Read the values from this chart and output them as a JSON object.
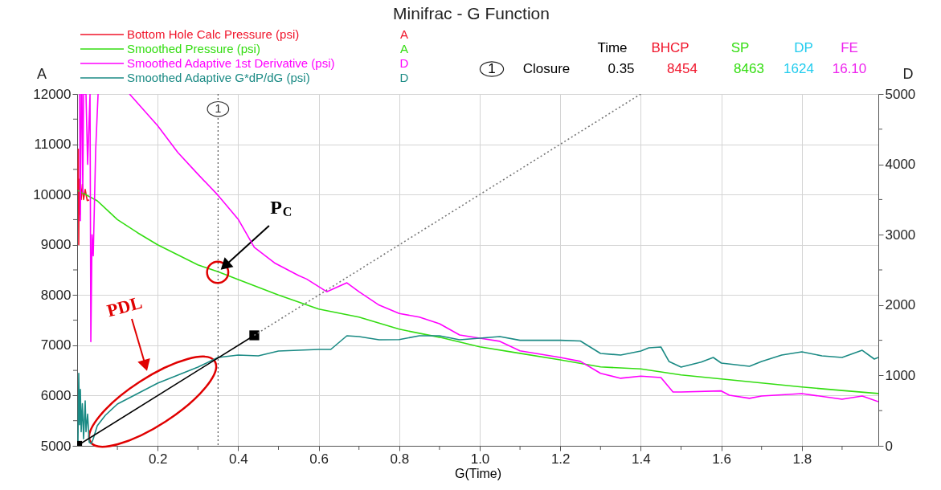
{
  "chart_data": {
    "type": "line",
    "title": "Minifrac - G Function",
    "xlabel": "G(Time)",
    "ylabel": "A",
    "y2label": "D",
    "xlim": [
      0,
      1.99
    ],
    "ylim": [
      5000,
      12000
    ],
    "y2lim": [
      0,
      5000
    ],
    "xticks": [
      0.2,
      0.4,
      0.6,
      0.8,
      {
        "value": 1.0,
        "label": "1.0"
      },
      1.2,
      1.4,
      1.6,
      1.8,
      {
        "value": 0.1,
        "label": null
      },
      {
        "value": 0.3,
        "label": null
      },
      {
        "value": 0.5,
        "label": null
      },
      {
        "value": 0.7,
        "label": null
      },
      {
        "value": 0.9,
        "label": null
      },
      {
        "value": 1.1,
        "label": null
      },
      {
        "value": 1.3,
        "label": null
      },
      {
        "value": 1.5,
        "label": null
      },
      {
        "value": 1.7,
        "label": null
      },
      {
        "value": 1.9,
        "label": null
      }
    ],
    "yticks": [
      5000,
      6000,
      7000,
      8000,
      9000,
      10000,
      11000,
      12000,
      {
        "value": 5500,
        "label": null
      },
      {
        "value": 6500,
        "label": null
      },
      {
        "value": 7500,
        "label": null
      },
      {
        "value": 8500,
        "label": null
      },
      {
        "value": 9500,
        "label": null
      },
      {
        "value": 10500,
        "label": null
      },
      {
        "value": 11500,
        "label": null
      }
    ],
    "y2ticks": [
      0,
      1000,
      2000,
      3000,
      4000,
      5000,
      {
        "value": 500,
        "label": null
      },
      {
        "value": 1500,
        "label": null
      },
      {
        "value": 2500,
        "label": null
      },
      {
        "value": 3500,
        "label": null
      },
      {
        "value": 4500,
        "label": null
      }
    ],
    "grid": true,
    "legend": "top left",
    "series": [
      {
        "name": "Bottom Hole Calc Pressure (psi)",
        "color": "#f0142a",
        "x": [
          0.002,
          0.003,
          0.004,
          0.005,
          0.006,
          0.008,
          0.01,
          0.013,
          0.016,
          0.02,
          0.025,
          0.03
        ],
        "values": [
          10100,
          10900,
          9000,
          10300,
          9600,
          10200,
          9900,
          10200,
          9900,
          10100,
          9880,
          9890
        ]
      },
      {
        "name": "Smoothed Pressure (psi)",
        "color": "#33dd11",
        "x": [
          0.002,
          0.05,
          0.1,
          0.15,
          0.2,
          0.25,
          0.3,
          0.35,
          0.4,
          0.5,
          0.6,
          0.7,
          0.8,
          0.9,
          1.0,
          1.1,
          1.2,
          1.3,
          1.4,
          1.5,
          1.6,
          1.7,
          1.8,
          1.9,
          1.99
        ],
        "values": [
          10080,
          9875,
          9500,
          9240,
          9000,
          8800,
          8600,
          8463,
          8310,
          8000,
          7720,
          7560,
          7320,
          7160,
          6970,
          6840,
          6710,
          6570,
          6530,
          6410,
          6330,
          6250,
          6170,
          6100,
          6040
        ]
      },
      {
        "name": "Smoothed Adaptive 1st Derivative (psi)",
        "color": "#ff00ff",
        "axis": "y2",
        "x": [
          0.006,
          0.008,
          0.01,
          0.012,
          0.014,
          0.016,
          0.022,
          0.026,
          0.032,
          0.034,
          0.037,
          0.04,
          0.046,
          0.052,
          0.09,
          0.13,
          0.2,
          0.25,
          0.3,
          0.35,
          0.4,
          0.44,
          0.49,
          0.55,
          0.57,
          0.62,
          0.67,
          0.7,
          0.75,
          0.8,
          0.85,
          0.9,
          0.95,
          1.0,
          1.05,
          1.1,
          1.2,
          1.25,
          1.3,
          1.35,
          1.4,
          1.45,
          1.48,
          1.5,
          1.6,
          1.62,
          1.67,
          1.7,
          1.8,
          1.9,
          1.95,
          1.99
        ],
        "values": [
          5000,
          3200,
          5000,
          5000,
          3600,
          5000,
          5000,
          4000,
          5000,
          1480,
          3000,
          2700,
          4200,
          5000,
          null,
          5000,
          4550,
          4170,
          3860,
          3560,
          3220,
          2820,
          2600,
          2420,
          2370,
          2190,
          2317,
          2190,
          2000,
          1880,
          1830,
          1735,
          1575,
          1530,
          1485,
          1350,
          1255,
          1200,
          1030,
          960,
          990,
          970,
          765,
          765,
          780,
          720,
          675,
          708,
          742,
          662,
          708,
          628
        ]
      },
      {
        "name": "Smoothed Adaptive G*dP/dG (psi)",
        "color": "#1a8a84",
        "axis": "y2",
        "x": [
          0.002,
          0.004,
          0.006,
          0.008,
          0.01,
          0.013,
          0.016,
          0.02,
          0.022,
          0.026,
          0.03,
          0.035,
          0.04,
          0.05,
          0.07,
          0.1,
          0.15,
          0.2,
          0.25,
          0.3,
          0.35,
          0.4,
          0.45,
          0.5,
          0.55,
          0.6,
          0.63,
          0.67,
          0.7,
          0.75,
          0.8,
          0.85,
          0.9,
          0.95,
          1.0,
          1.05,
          1.1,
          1.2,
          1.25,
          1.3,
          1.35,
          1.4,
          1.42,
          1.45,
          1.47,
          1.5,
          1.55,
          1.58,
          1.6,
          1.67,
          1.7,
          1.75,
          1.8,
          1.85,
          1.9,
          1.95,
          1.98,
          1.99
        ],
        "values": [
          0,
          1030,
          300,
          800,
          200,
          600,
          100,
          640,
          200,
          450,
          50,
          30,
          100,
          285,
          434,
          594,
          742,
          890,
          1005,
          1119,
          1256,
          1290,
          1278,
          1347,
          1358,
          1370,
          1370,
          1564,
          1552,
          1507,
          1510,
          1564,
          1564,
          1507,
          1530,
          1552,
          1500,
          1500,
          1490,
          1313,
          1290,
          1347,
          1393,
          1404,
          1199,
          1119,
          1190,
          1256,
          1176,
          1130,
          1199,
          1290,
          1336,
          1279,
          1256,
          1358,
          1233,
          1256
        ]
      },
      {
        "color": "#000000",
        "axis": "y2",
        "marker": "square",
        "x": [
          0.0,
          0.44
        ],
        "values": [
          0,
          1570
        ]
      },
      {
        "color": "#777777",
        "axis": "y2",
        "line_style": "dotted",
        "x": [
          0.44,
          1.4
        ],
        "values": [
          1570,
          5000
        ]
      }
    ],
    "ref_lines": [
      {
        "axis": "x",
        "value": 0.35,
        "line_style": "dotted",
        "color": "#555555"
      }
    ],
    "annotations": [
      "Time",
      "BHCP",
      "SP",
      "DP",
      "FE",
      "1",
      "Closure",
      "0.35",
      "8454",
      "8463",
      "1624",
      "16.10",
      "A",
      "A",
      "D",
      "D",
      {
        "text": "1",
        "x": 0.35,
        "y": 11700
      },
      {
        "text": "P$_{C}$",
        "x": 0.367,
        "y": 8580
      },
      "PDL"
    ]
  }
}
